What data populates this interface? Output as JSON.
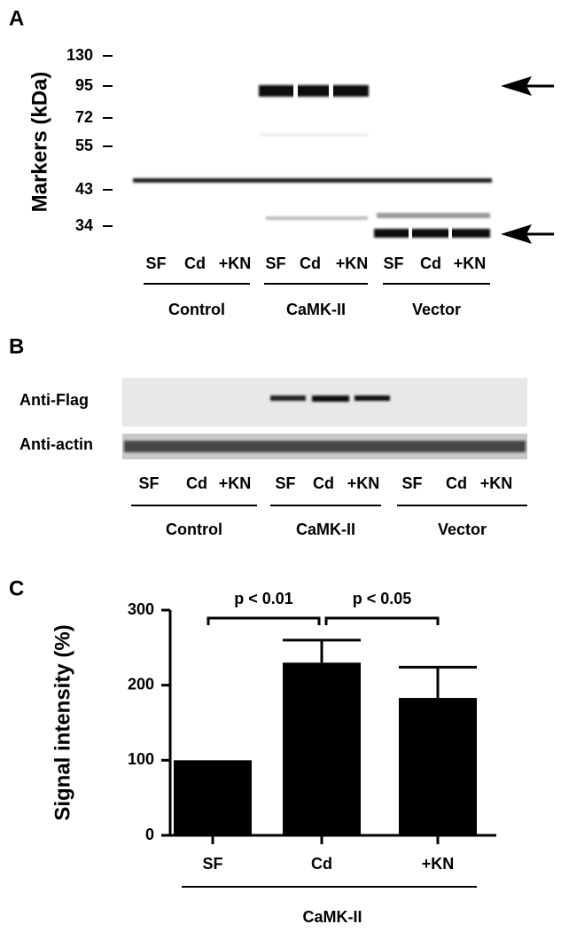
{
  "panel_a": {
    "letter": "A",
    "axis_label": "Markers (kDa)",
    "markers": [
      130,
      95,
      72,
      55,
      43,
      34
    ],
    "groups": [
      {
        "name": "Control",
        "lanes": [
          "SF",
          "Cd",
          "+KN"
        ]
      },
      {
        "name": "CaMK-II",
        "lanes": [
          "SF",
          "Cd",
          "+KN"
        ]
      },
      {
        "name": "Vector",
        "lanes": [
          "SF",
          "Cd",
          "+KN"
        ]
      }
    ]
  },
  "panel_b": {
    "letter": "B",
    "rows": [
      "Anti-Flag",
      "Anti-actin"
    ],
    "groups": [
      {
        "name": "Control",
        "lanes": [
          "SF",
          "Cd",
          "+KN"
        ]
      },
      {
        "name": "CaMK-II",
        "lanes": [
          "SF",
          "Cd",
          "+KN"
        ]
      },
      {
        "name": "Vector",
        "lanes": [
          "SF",
          "Cd",
          "+KN"
        ]
      }
    ]
  },
  "chart_data": {
    "type": "bar",
    "letter": "C",
    "y_label": "Signal intensity (%)",
    "categories": [
      "SF",
      "Cd",
      "+KN"
    ],
    "values": [
      100,
      230,
      183
    ],
    "errors": [
      null,
      30,
      41
    ],
    "color": "#000000",
    "ylim": [
      0,
      300
    ],
    "yticks": [
      0,
      100,
      200,
      300
    ],
    "group_label": "CaMK-II",
    "annotations": [
      "p < 0.01",
      "p < 0.05"
    ]
  }
}
